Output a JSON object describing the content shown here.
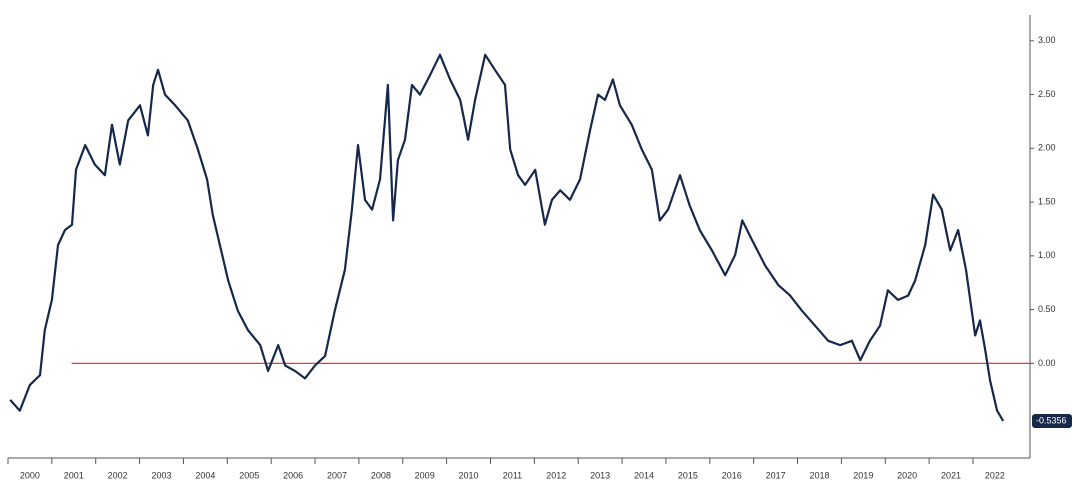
{
  "chart_data": {
    "type": "line",
    "x": [
      2000.05,
      2000.27,
      2000.5,
      2000.73,
      2000.84,
      2001.0,
      2001.14,
      2001.3,
      2001.46,
      2001.55,
      2001.76,
      2001.98,
      2002.21,
      2002.37,
      2002.55,
      2002.74,
      2003.01,
      2003.19,
      2003.31,
      2003.42,
      2003.58,
      2003.81,
      2004.1,
      2004.33,
      2004.54,
      2004.67,
      2004.83,
      2005.02,
      2005.24,
      2005.47,
      2005.75,
      2005.93,
      2006.16,
      2006.32,
      2006.54,
      2006.77,
      2007.0,
      2007.23,
      2007.45,
      2007.68,
      2007.84,
      2007.98,
      2008.14,
      2008.3,
      2008.48,
      2008.66,
      2008.78,
      2008.89,
      2009.05,
      2009.21,
      2009.39,
      2009.62,
      2009.85,
      2010.08,
      2010.31,
      2010.49,
      2010.65,
      2010.88,
      2011.1,
      2011.33,
      2011.45,
      2011.63,
      2011.79,
      2012.02,
      2012.24,
      2012.4,
      2012.59,
      2012.81,
      2013.04,
      2013.27,
      2013.45,
      2013.61,
      2013.79,
      2013.95,
      2014.22,
      2014.45,
      2014.68,
      2014.86,
      2015.05,
      2015.32,
      2015.54,
      2015.77,
      2016.05,
      2016.35,
      2016.58,
      2016.74,
      2016.96,
      2017.26,
      2017.56,
      2017.83,
      2018.1,
      2018.4,
      2018.7,
      2018.97,
      2019.24,
      2019.43,
      2019.65,
      2019.88,
      2020.06,
      2020.29,
      2020.52,
      2020.68,
      2020.91,
      2021.09,
      2021.29,
      2021.48,
      2021.66,
      2021.84,
      2022.05,
      2022.16,
      2022.28,
      2022.39,
      2022.55,
      2022.69
    ],
    "series": [
      {
        "color": "#16284a",
        "values": [
          -0.34,
          -0.44,
          -0.2,
          -0.11,
          0.31,
          0.59,
          1.1,
          1.24,
          1.29,
          1.8,
          2.03,
          1.85,
          1.75,
          2.22,
          1.85,
          2.26,
          2.4,
          2.12,
          2.59,
          2.73,
          2.5,
          2.4,
          2.26,
          1.99,
          1.71,
          1.38,
          1.1,
          0.77,
          0.49,
          0.31,
          0.17,
          -0.07,
          0.17,
          -0.02,
          -0.07,
          -0.14,
          -0.02,
          0.07,
          0.49,
          0.87,
          1.43,
          2.03,
          1.52,
          1.43,
          1.71,
          2.59,
          1.33,
          1.89,
          2.08,
          2.59,
          2.5,
          2.68,
          2.87,
          2.64,
          2.45,
          2.08,
          2.45,
          2.87,
          2.73,
          2.59,
          1.99,
          1.75,
          1.66,
          1.8,
          1.29,
          1.52,
          1.61,
          1.52,
          1.71,
          2.17,
          2.5,
          2.45,
          2.64,
          2.4,
          2.22,
          1.99,
          1.8,
          1.33,
          1.43,
          1.75,
          1.47,
          1.24,
          1.05,
          0.82,
          1.01,
          1.33,
          1.15,
          0.91,
          0.73,
          0.63,
          0.49,
          0.35,
          0.21,
          0.17,
          0.21,
          0.03,
          0.21,
          0.35,
          0.68,
          0.59,
          0.63,
          0.77,
          1.1,
          1.57,
          1.43,
          1.05,
          1.24,
          0.87,
          0.26,
          0.4,
          0.12,
          -0.16,
          -0.44,
          -0.5356
        ]
      }
    ],
    "last_value_label": "-0.5356",
    "reference_line": {
      "value": 0,
      "start": 2001.45,
      "color": "#e8393a"
    },
    "xlim": [
      2000,
      2023.3
    ],
    "xticks": [
      2000,
      2001,
      2002,
      2003,
      2004,
      2005,
      2006,
      2007,
      2008,
      2009,
      2010,
      2011,
      2012,
      2013,
      2014,
      2015,
      2016,
      2017,
      2018,
      2019,
      2020,
      2021,
      2022
    ],
    "ylim": [
      -0.88,
      3.24
    ],
    "yticks": [
      {
        "value": 0,
        "label": "0.00"
      },
      {
        "value": 0.5,
        "label": "0.50"
      },
      {
        "value": 1,
        "label": "1.00"
      },
      {
        "value": 1.5,
        "label": "1.50"
      },
      {
        "value": 2,
        "label": "2.00"
      },
      {
        "value": 2.5,
        "label": "2.50"
      },
      {
        "value": 3,
        "label": "3.00"
      }
    ]
  }
}
